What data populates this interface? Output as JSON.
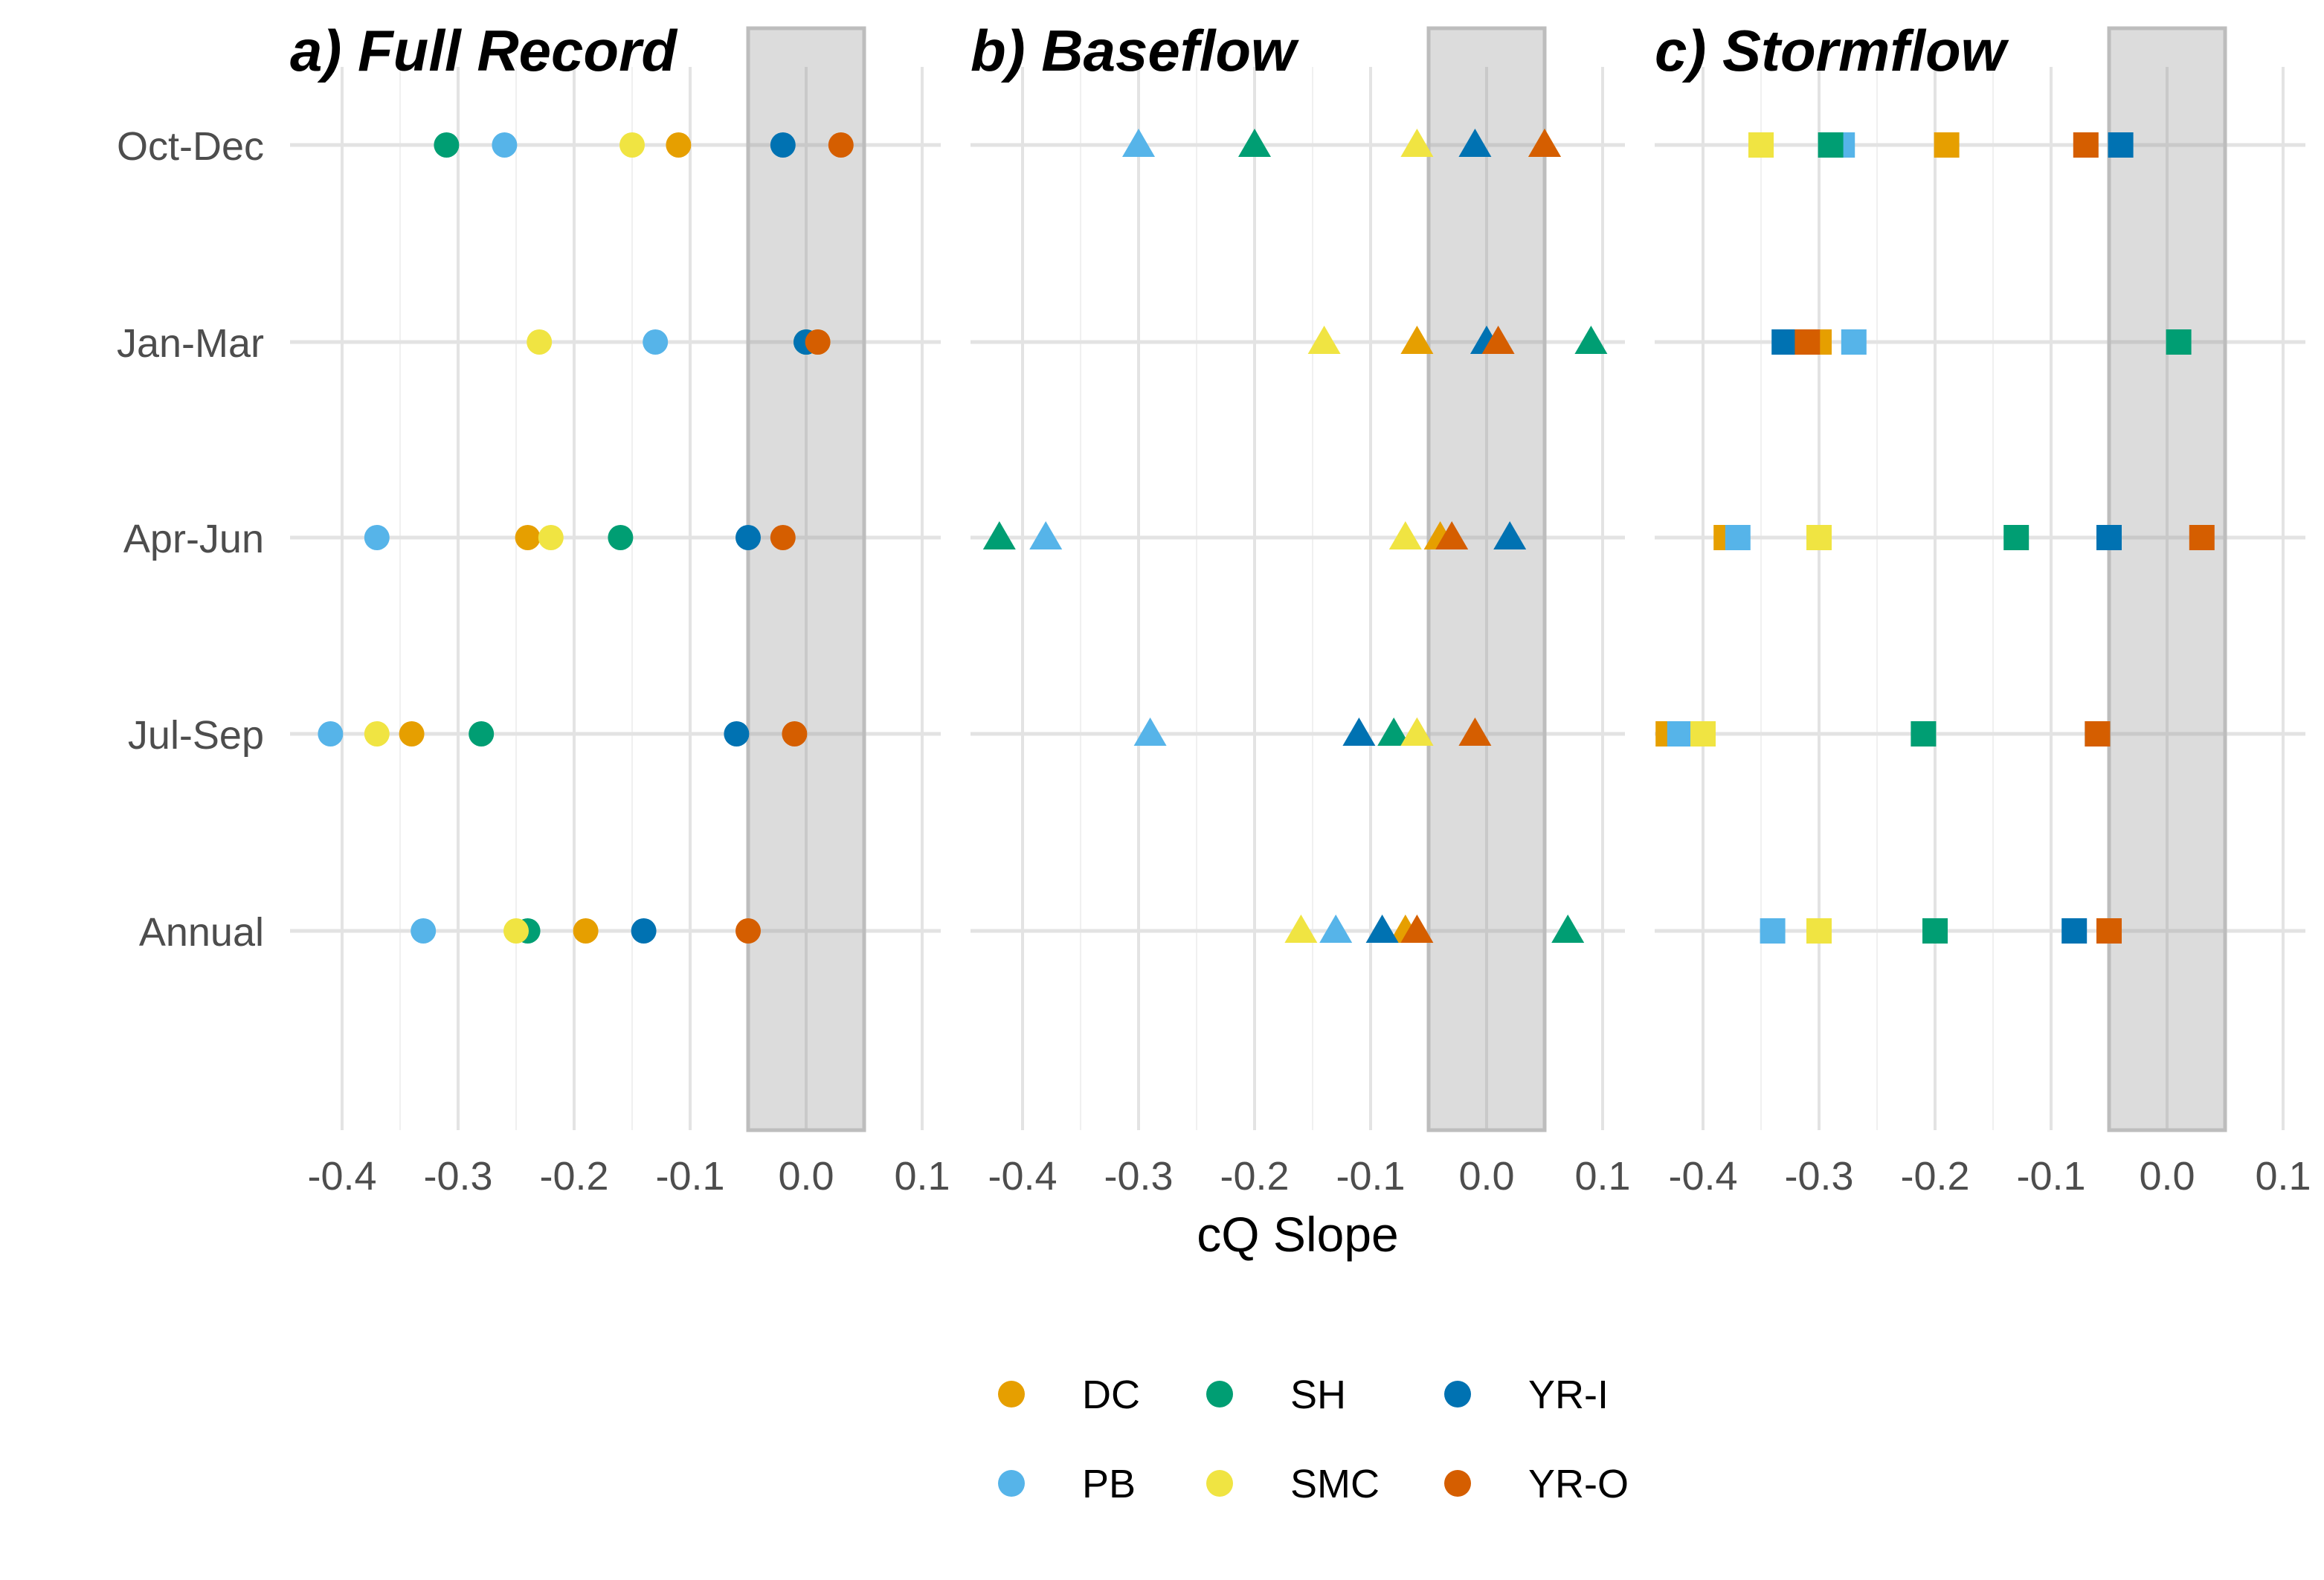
{
  "chart_data": {
    "type": "scatter",
    "xlabel": "cQ Slope",
    "categories": [
      "Oct-Dec",
      "Jan-Mar",
      "Apr-Jun",
      "Jul-Sep",
      "Annual"
    ],
    "xticks": [
      "-0.4",
      "-0.3",
      "-0.2",
      "-0.1",
      "0.0",
      "0.1"
    ],
    "xlim": [
      -0.44,
      0.1
    ],
    "shaded_band": [
      -0.05,
      0.05
    ],
    "grid": true,
    "legend_position": "bottom",
    "colors": {
      "DC": "#E69F00",
      "PB": "#56B4E9",
      "SH": "#009E73",
      "SMC": "#F0E442",
      "YR-I": "#0072B2",
      "YR-O": "#D55E00"
    },
    "legend": [
      {
        "name": "DC",
        "color": "#E69F00"
      },
      {
        "name": "PB",
        "color": "#56B4E9"
      },
      {
        "name": "SH",
        "color": "#009E73"
      },
      {
        "name": "SMC",
        "color": "#F0E442"
      },
      {
        "name": "YR-I",
        "color": "#0072B2"
      },
      {
        "name": "YR-O",
        "color": "#D55E00"
      }
    ],
    "panels": [
      {
        "title": "a) Full Record",
        "marker": "circle",
        "series": [
          {
            "name": "DC",
            "values": [
              -0.11,
              0.01,
              -0.24,
              -0.34,
              -0.19
            ]
          },
          {
            "name": "PB",
            "values": [
              -0.26,
              -0.13,
              -0.37,
              -0.41,
              -0.33
            ]
          },
          {
            "name": "SH",
            "values": [
              -0.31,
              0.0,
              -0.16,
              -0.28,
              -0.24
            ]
          },
          {
            "name": "SMC",
            "values": [
              -0.15,
              -0.23,
              -0.22,
              -0.37,
              -0.25
            ]
          },
          {
            "name": "YR-I",
            "values": [
              -0.02,
              0.0,
              -0.05,
              -0.06,
              -0.14
            ]
          },
          {
            "name": "YR-O",
            "values": [
              0.03,
              0.01,
              -0.02,
              -0.01,
              -0.05
            ]
          }
        ]
      },
      {
        "title": "b) Baseflow",
        "marker": "triangle",
        "series": [
          {
            "name": "DC",
            "values": [
              0.05,
              -0.06,
              -0.04,
              -0.06,
              -0.07
            ]
          },
          {
            "name": "PB",
            "values": [
              -0.3,
              0.0,
              -0.38,
              -0.29,
              -0.13
            ]
          },
          {
            "name": "SH",
            "values": [
              -0.2,
              0.09,
              -0.42,
              -0.08,
              0.07
            ]
          },
          {
            "name": "SMC",
            "values": [
              -0.06,
              -0.14,
              -0.07,
              -0.06,
              -0.16
            ]
          },
          {
            "name": "YR-I",
            "values": [
              -0.01,
              0.0,
              0.02,
              -0.11,
              -0.09
            ]
          },
          {
            "name": "YR-O",
            "values": [
              0.05,
              0.01,
              -0.03,
              -0.01,
              -0.06
            ]
          }
        ]
      },
      {
        "title": "c) Stormflow",
        "marker": "square",
        "series": [
          {
            "name": "DC",
            "values": [
              -0.19,
              -0.3,
              -0.38,
              -0.43,
              -0.05
            ]
          },
          {
            "name": "PB",
            "values": [
              -0.28,
              -0.27,
              -0.37,
              -0.42,
              -0.34
            ]
          },
          {
            "name": "SH",
            "values": [
              -0.29,
              0.01,
              -0.13,
              -0.21,
              -0.2
            ]
          },
          {
            "name": "SMC",
            "values": [
              -0.35,
              -0.31,
              -0.3,
              -0.4,
              -0.3
            ]
          },
          {
            "name": "YR-I",
            "values": [
              -0.04,
              -0.33,
              -0.05,
              -0.06,
              -0.08
            ]
          },
          {
            "name": "YR-O",
            "values": [
              -0.07,
              -0.31,
              0.03,
              -0.06,
              -0.05
            ]
          }
        ]
      }
    ]
  }
}
